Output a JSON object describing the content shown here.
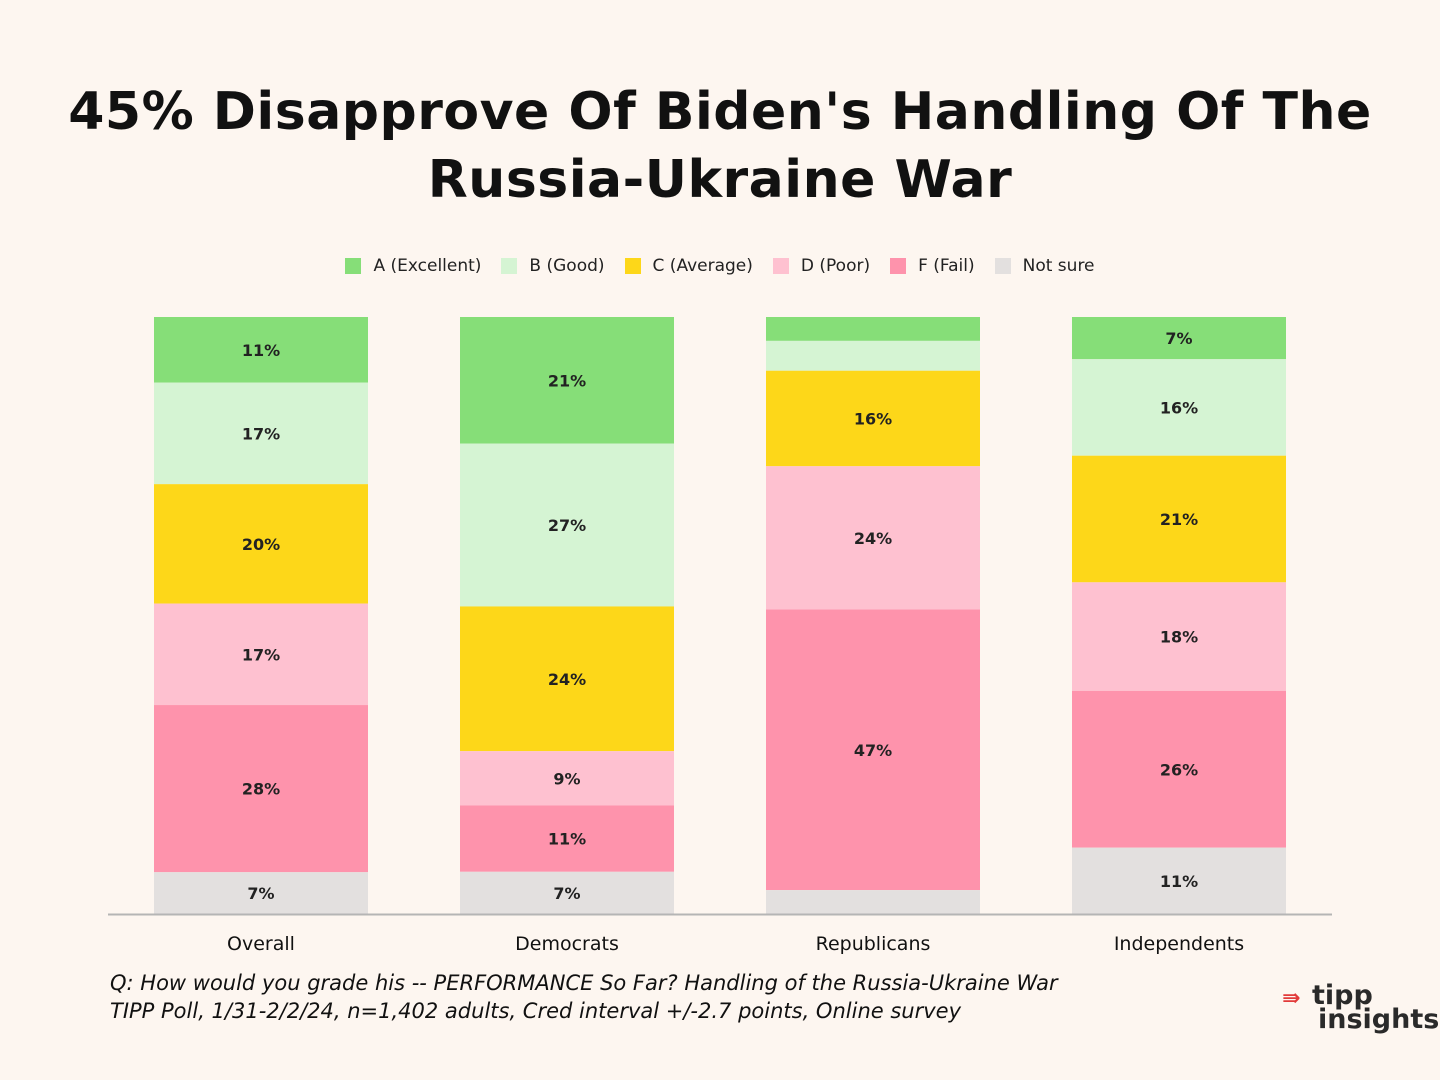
{
  "chart_data": {
    "type": "bar",
    "stacked": true,
    "title": "45% Disapprove Of Biden's Handling Of The Russia-Ukraine War",
    "title_lines": [
      "45% Disapprove Of Biden's Handling Of The",
      "Russia-Ukraine War"
    ],
    "categories": [
      "Overall",
      "Democrats",
      "Republicans",
      "Independents"
    ],
    "series": [
      {
        "name": "A (Excellent)",
        "color": "#86DE78",
        "values": [
          11,
          21,
          4,
          7
        ],
        "labels": [
          "11%",
          "21%",
          "",
          "7%"
        ]
      },
      {
        "name": "B (Good)",
        "color": "#D5F4D3",
        "values": [
          17,
          27,
          5,
          16
        ],
        "labels": [
          "17%",
          "27%",
          "",
          "16%"
        ]
      },
      {
        "name": "C (Average)",
        "color": "#FDD719",
        "values": [
          20,
          24,
          16,
          21
        ],
        "labels": [
          "20%",
          "24%",
          "16%",
          "21%"
        ]
      },
      {
        "name": "D (Poor)",
        "color": "#FEC1D0",
        "values": [
          17,
          9,
          24,
          18
        ],
        "labels": [
          "17%",
          "9%",
          "24%",
          "18%"
        ]
      },
      {
        "name": "F (Fail)",
        "color": "#FE93AC",
        "values": [
          28,
          11,
          47,
          26
        ],
        "labels": [
          "28%",
          "11%",
          "47%",
          "26%"
        ]
      },
      {
        "name": "Not sure",
        "color": "#E3E0DF",
        "values": [
          7,
          7,
          4,
          11
        ],
        "labels": [
          "7%",
          "7%",
          "",
          "11%"
        ]
      }
    ],
    "legend_position": "top-center",
    "grid": false,
    "xlabel": "",
    "ylabel": ""
  },
  "footnote": {
    "question": "Q:  How would you grade his -- PERFORMANCE So Far?  Handling of the Russia-Ukraine War",
    "source": "TIPP Poll, 1/31-2/2/24, n=1,402 adults, Cred interval +/-2.7 points, Online survey"
  },
  "logo": {
    "top": "tipp",
    "bottom": "insights"
  },
  "colors": {
    "background": "#FDF6F0",
    "axis": "#B5B5B5",
    "text": "#111111"
  }
}
